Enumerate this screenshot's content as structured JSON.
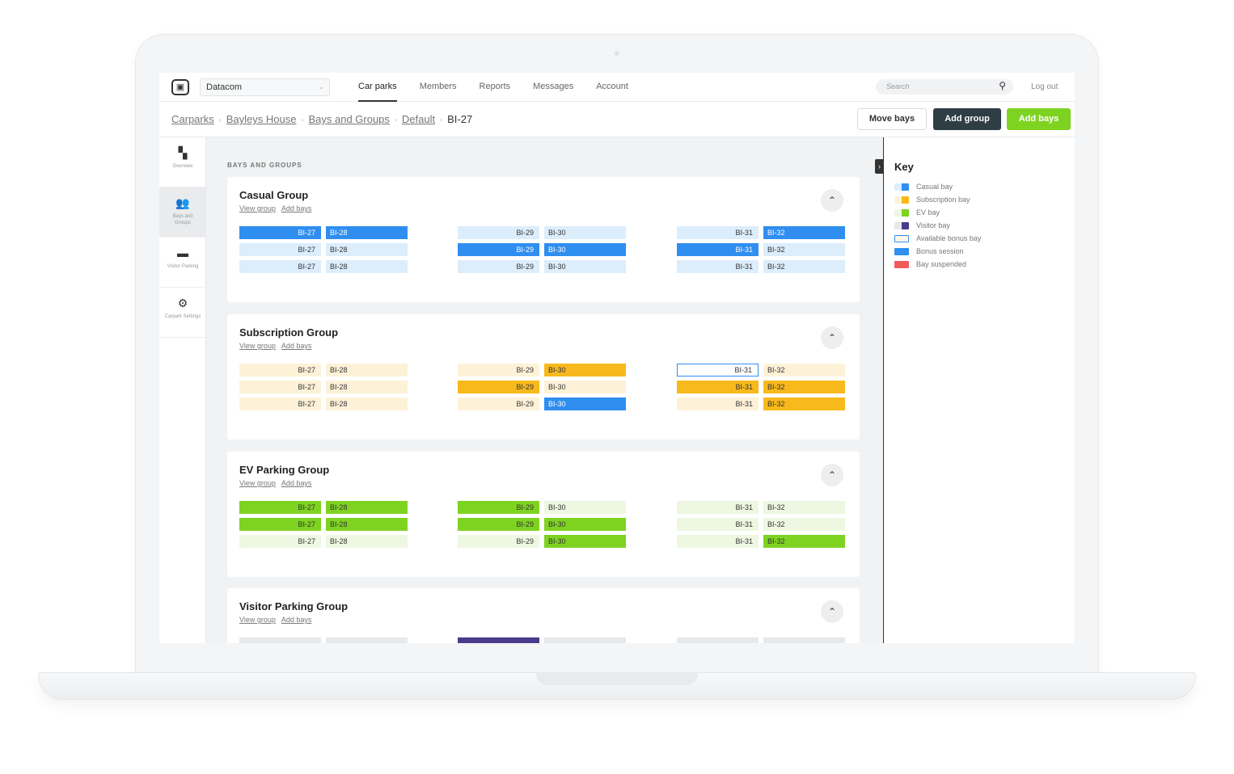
{
  "app": {
    "org": "Datacom",
    "nav": [
      "Car parks",
      "Members",
      "Reports",
      "Messages",
      "Account"
    ],
    "active_nav": "Car parks",
    "search_placeholder": "Search",
    "logout": "Log out"
  },
  "breadcrumb": {
    "items": [
      "Carparks",
      "Bayleys House",
      "Bays and Groups",
      "Default"
    ],
    "current": "BI-27"
  },
  "actions": {
    "move_bays": "Move bays",
    "add_group": "Add group",
    "add_bays": "Add bays"
  },
  "sidebar": {
    "items": [
      {
        "label": "Overview",
        "icon": "grid-icon"
      },
      {
        "label": "Bays and Groups",
        "icon": "people-icon"
      },
      {
        "label": "Visitor Parking",
        "icon": "folder-icon"
      },
      {
        "label": "Carpark Settings",
        "icon": "gear-icon"
      }
    ],
    "active_index": 1
  },
  "main": {
    "section_title": "BAYS AND GROUPS",
    "view_group": "View group",
    "add_bays": "Add bays"
  },
  "colors": {
    "casual": "#2f8ef0",
    "casual_light": "#dcedfc",
    "subscription": "#f8b91c",
    "subscription_light": "#fdf2d8",
    "ev": "#7ed321",
    "ev_light": "#eef7e1",
    "visitor": "#4a3a8c",
    "visitor_light": "#e6e8ea",
    "bonus_available": "#fff8e6",
    "bonus_session": "#2f8ef0",
    "suspended": "#f25a5a"
  },
  "groups": [
    {
      "title": "Casual Group",
      "columns": [
        {
          "rows": [
            {
              "left": "BI-27",
              "left_state": "casual",
              "right": "BI-28",
              "right_state": "casual"
            },
            {
              "left": "BI-27",
              "left_state": "casual_light",
              "right": "BI-28",
              "right_state": "casual_light"
            },
            {
              "left": "BI-27",
              "left_state": "casual_light",
              "right": "BI-28",
              "right_state": "casual_light"
            }
          ]
        },
        {
          "rows": [
            {
              "left": "BI-29",
              "left_state": "casual_light",
              "right": "BI-30",
              "right_state": "casual_light"
            },
            {
              "left": "BI-29",
              "left_state": "casual",
              "right": "BI-30",
              "right_state": "casual"
            },
            {
              "left": "BI-29",
              "left_state": "casual_light",
              "right": "BI-30",
              "right_state": "casual_light"
            }
          ]
        },
        {
          "rows": [
            {
              "left": "BI-31",
              "left_state": "casual_light",
              "right": "BI-32",
              "right_state": "casual"
            },
            {
              "left": "BI-31",
              "left_state": "casual",
              "right": "BI-32",
              "right_state": "casual_light"
            },
            {
              "left": "BI-31",
              "left_state": "casual_light",
              "right": "BI-32",
              "right_state": "casual_light"
            }
          ]
        }
      ]
    },
    {
      "title": "Subscription Group",
      "columns": [
        {
          "rows": [
            {
              "left": "BI-27",
              "left_state": "subscription_light",
              "right": "BI-28",
              "right_state": "subscription_light"
            },
            {
              "left": "BI-27",
              "left_state": "subscription_light",
              "right": "BI-28",
              "right_state": "subscription_light"
            },
            {
              "left": "BI-27",
              "left_state": "subscription_light",
              "right": "BI-28",
              "right_state": "subscription_light"
            }
          ]
        },
        {
          "rows": [
            {
              "left": "BI-29",
              "left_state": "subscription_light",
              "right": "BI-30",
              "right_state": "subscription"
            },
            {
              "left": "BI-29",
              "left_state": "subscription",
              "right": "BI-30",
              "right_state": "subscription_light"
            },
            {
              "left": "BI-29",
              "left_state": "subscription_light",
              "right": "BI-30",
              "right_state": "casual"
            }
          ]
        },
        {
          "rows": [
            {
              "left": "BI-31",
              "left_state": "bonus_outline",
              "right": "BI-32",
              "right_state": "subscription_light"
            },
            {
              "left": "BI-31",
              "left_state": "subscription",
              "right": "BI-32",
              "right_state": "subscription"
            },
            {
              "left": "BI-31",
              "left_state": "subscription_light",
              "right": "BI-32",
              "right_state": "subscription"
            }
          ]
        }
      ]
    },
    {
      "title": "EV Parking Group",
      "columns": [
        {
          "rows": [
            {
              "left": "BI-27",
              "left_state": "ev",
              "right": "BI-28",
              "right_state": "ev"
            },
            {
              "left": "BI-27",
              "left_state": "ev",
              "right": "BI-28",
              "right_state": "ev"
            },
            {
              "left": "BI-27",
              "left_state": "ev_light",
              "right": "BI-28",
              "right_state": "ev_light"
            }
          ]
        },
        {
          "rows": [
            {
              "left": "BI-29",
              "left_state": "ev",
              "right": "BI-30",
              "right_state": "ev_light"
            },
            {
              "left": "BI-29",
              "left_state": "ev",
              "right": "BI-30",
              "right_state": "ev"
            },
            {
              "left": "BI-29",
              "left_state": "ev_light",
              "right": "BI-30",
              "right_state": "ev"
            }
          ]
        },
        {
          "rows": [
            {
              "left": "BI-31",
              "left_state": "ev_light",
              "right": "BI-32",
              "right_state": "ev_light"
            },
            {
              "left": "BI-31",
              "left_state": "ev_light",
              "right": "BI-32",
              "right_state": "ev_light"
            },
            {
              "left": "BI-31",
              "left_state": "ev_light",
              "right": "BI-32",
              "right_state": "ev"
            }
          ]
        }
      ]
    },
    {
      "title": "Visitor Parking Group",
      "columns": [
        {
          "rows": [
            {
              "left": "",
              "left_state": "visitor_light",
              "right": "",
              "right_state": "visitor_light"
            }
          ]
        },
        {
          "rows": [
            {
              "left": "",
              "left_state": "visitor",
              "right": "",
              "right_state": "visitor_light"
            }
          ]
        },
        {
          "rows": [
            {
              "left": "",
              "left_state": "visitor_light",
              "right": "",
              "right_state": "visitor_light"
            }
          ]
        }
      ]
    }
  ],
  "key": {
    "title": "Key",
    "items": [
      {
        "label": "Casual bay",
        "swatch": "casual"
      },
      {
        "label": "Subscription bay",
        "swatch": "subscription"
      },
      {
        "label": "EV bay",
        "swatch": "ev"
      },
      {
        "label": "Visitor bay",
        "swatch": "visitor"
      },
      {
        "label": "Available bonus bay",
        "swatch": "bonus_available"
      },
      {
        "label": "Bonus session",
        "swatch": "bonus_session"
      },
      {
        "label": "Bay suspended",
        "swatch": "suspended"
      }
    ]
  }
}
